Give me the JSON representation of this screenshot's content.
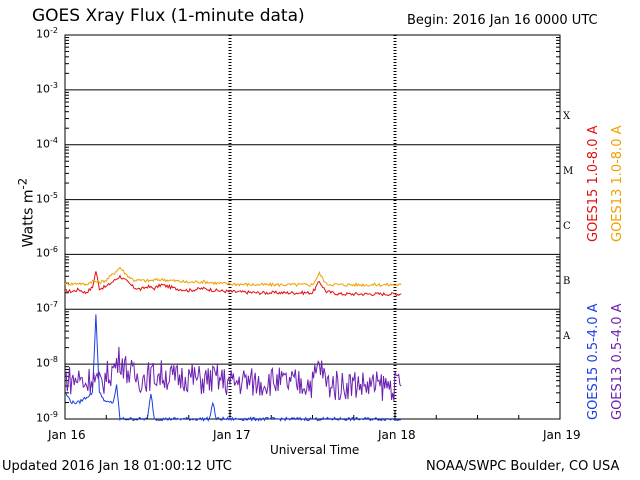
{
  "header": {
    "title": "GOES Xray Flux (1-minute data)",
    "begin_label": "Begin:  2016 Jan 16 0000 UTC"
  },
  "footer": {
    "updated": "Updated 2016 Jan 18 01:00:12 UTC",
    "credit": "NOAA/SWPC Boulder, CO USA"
  },
  "colors": {
    "goes15_long": "#e01010",
    "goes13_long": "#f0a000",
    "goes15_short": "#1a3ee0",
    "goes13_short": "#6a20b0"
  },
  "chart_data": {
    "type": "line",
    "title": "GOES Xray Flux (1-minute data)",
    "xlabel": "Universal Time",
    "ylabel": "Watts m-2",
    "yscale": "log",
    "ylim": [
      1e-09,
      0.01
    ],
    "xlim": [
      0,
      72
    ],
    "x_unit": "hours since 2016 Jan 16 0000 UTC",
    "x_ticks": [
      {
        "x": 0,
        "label": "Jan 16"
      },
      {
        "x": 24,
        "label": "Jan 17"
      },
      {
        "x": 48,
        "label": "Jan 18"
      },
      {
        "x": 72,
        "label": "Jan 19"
      }
    ],
    "y_ticks": [
      {
        "value": 1e-09,
        "base": "10",
        "exp": "-9"
      },
      {
        "value": 1e-08,
        "base": "10",
        "exp": "-8"
      },
      {
        "value": 1e-07,
        "base": "10",
        "exp": "-7"
      },
      {
        "value": 1e-06,
        "base": "10",
        "exp": "-6"
      },
      {
        "value": 1e-05,
        "base": "10",
        "exp": "-5"
      },
      {
        "value": 0.0001,
        "base": "10",
        "exp": "-4"
      },
      {
        "value": 0.001,
        "base": "10",
        "exp": "-3"
      },
      {
        "value": 0.01,
        "base": "10",
        "exp": "-2"
      }
    ],
    "flare_classes": [
      {
        "label": "X",
        "value": 0.000316
      },
      {
        "label": "M",
        "value": 3.16e-05
      },
      {
        "label": "C",
        "value": 3.16e-06
      },
      {
        "label": "B",
        "value": 3.16e-07
      },
      {
        "label": "A",
        "value": 3.16e-08
      }
    ],
    "series": [
      {
        "name": "GOES15 1.0-8.0 A",
        "color": "#e01010",
        "x": [
          0,
          1,
          2,
          3,
          4,
          4.5,
          5,
          6,
          8,
          9,
          10,
          11,
          12,
          13,
          14,
          15,
          16,
          17,
          18,
          20,
          22,
          24,
          28,
          32,
          36,
          37,
          38,
          40,
          44,
          48.9
        ],
        "values": [
          2.2e-07,
          2.1e-07,
          2.3e-07,
          2e-07,
          2.5e-07,
          5e-07,
          2.4e-07,
          2.6e-07,
          4e-07,
          3.2e-07,
          2.5e-07,
          2.3e-07,
          2.6e-07,
          2.4e-07,
          2.8e-07,
          2.6e-07,
          2.4e-07,
          2.3e-07,
          2.2e-07,
          2.4e-07,
          2.2e-07,
          2.1e-07,
          2e-07,
          2e-07,
          2e-07,
          3.2e-07,
          2.1e-07,
          1.9e-07,
          1.9e-07,
          1.9e-07
        ]
      },
      {
        "name": "GOES13 1.0-8.0 A",
        "color": "#f0a000",
        "x": [
          0,
          1,
          2,
          3,
          4,
          5,
          6,
          8,
          9,
          10,
          12,
          14,
          16,
          18,
          20,
          22,
          24,
          28,
          32,
          36,
          37,
          38,
          40,
          44,
          48.9
        ],
        "values": [
          3e-07,
          2.9e-07,
          3e-07,
          2.8e-07,
          3.3e-07,
          3.1e-07,
          3.4e-07,
          5.8e-07,
          4.2e-07,
          3.4e-07,
          3.3e-07,
          3.5e-07,
          3.3e-07,
          3.1e-07,
          3.2e-07,
          3e-07,
          2.9e-07,
          2.8e-07,
          2.8e-07,
          2.8e-07,
          4.5e-07,
          2.9e-07,
          2.8e-07,
          2.8e-07,
          2.8e-07
        ]
      },
      {
        "name": "GOES15 0.5-4.0 A",
        "color": "#1a3ee0",
        "x": [
          0,
          1,
          2,
          4,
          4.5,
          5,
          6,
          7,
          7.5,
          8,
          10,
          12,
          12.5,
          13,
          14,
          18,
          21,
          21.5,
          22,
          24,
          48.9
        ],
        "values": [
          3e-09,
          2e-09,
          2e-09,
          3e-09,
          8e-08,
          3e-09,
          2e-09,
          2e-09,
          4e-09,
          1e-09,
          1e-09,
          1e-09,
          3e-09,
          1e-09,
          1e-09,
          1e-09,
          1e-09,
          2e-09,
          1e-09,
          1e-09,
          1e-09
        ]
      },
      {
        "name": "GOES13 0.5-4.0 A",
        "color": "#6a20b0",
        "x": [
          0,
          1,
          2,
          3,
          4,
          5,
          6,
          7,
          8,
          9,
          10,
          11,
          12,
          14,
          16,
          18,
          20,
          22,
          24,
          26,
          28,
          30,
          32,
          34,
          36,
          37,
          38,
          40,
          42,
          44,
          46,
          48,
          48.9
        ],
        "values": [
          6e-09,
          5e-09,
          5.5e-09,
          4.5e-09,
          6e-09,
          4e-09,
          6e-09,
          8e-09,
          1.3e-08,
          8e-09,
          6e-09,
          5.5e-09,
          6e-09,
          6.5e-09,
          5.5e-09,
          6e-09,
          5e-09,
          5.5e-09,
          4.5e-09,
          5e-09,
          4.5e-09,
          5e-09,
          4.5e-09,
          4.5e-09,
          4.5e-09,
          1e-08,
          4.5e-09,
          4e-09,
          4.5e-09,
          4e-09,
          4e-09,
          4e-09,
          4e-09
        ]
      }
    ],
    "legend": [
      {
        "label": "GOES15 1.0-8.0 A",
        "color": "#e01010"
      },
      {
        "label": "GOES13 1.0-8.0 A",
        "color": "#f0a000"
      },
      {
        "label": "GOES15 0.5-4.0 A",
        "color": "#1a3ee0"
      },
      {
        "label": "GOES13 0.5-4.0 A",
        "color": "#6a20b0"
      }
    ]
  }
}
